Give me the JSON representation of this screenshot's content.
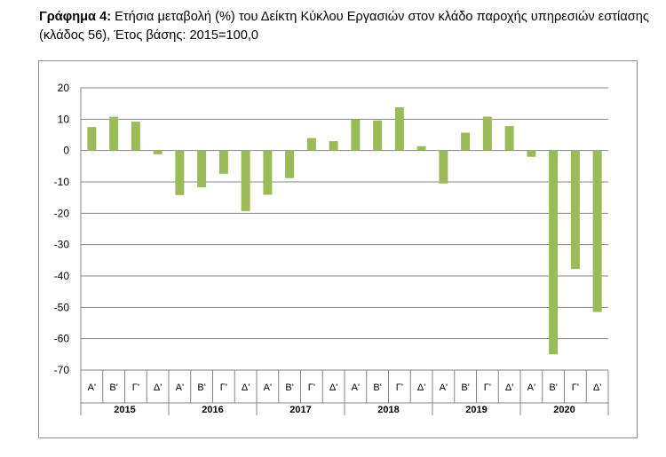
{
  "title": {
    "bold": "Γράφημα 4:",
    "text": " Ετήσια μεταβολή (%) του Δείκτη Κύκλου Εργασιών στον κλάδο παροχής υπηρεσιών εστίασης (κλάδος 56), Έτος βάσης: 2015=100,0"
  },
  "chart_data": {
    "type": "bar",
    "title": "",
    "xlabel": "",
    "ylabel": "",
    "ylim": [
      -70,
      20
    ],
    "yticks": [
      20,
      10,
      0,
      -10,
      -20,
      -30,
      -40,
      -50,
      -60,
      -70
    ],
    "grid": true,
    "legend": "none",
    "bar_color": "#9bbb59",
    "quarters": [
      "Α'",
      "Β'",
      "Γ'",
      "Δ'"
    ],
    "years": [
      "2015",
      "2016",
      "2017",
      "2018",
      "2019",
      "2020"
    ],
    "values": [
      7.5,
      10.8,
      9.2,
      -1.2,
      -14.2,
      -11.7,
      -7.4,
      -19.3,
      -14.1,
      -8.8,
      4.0,
      3.0,
      9.9,
      9.6,
      13.8,
      1.4,
      -10.5,
      5.7,
      10.8,
      7.8,
      -2.0,
      -65.0,
      -37.8,
      -51.5
    ]
  }
}
